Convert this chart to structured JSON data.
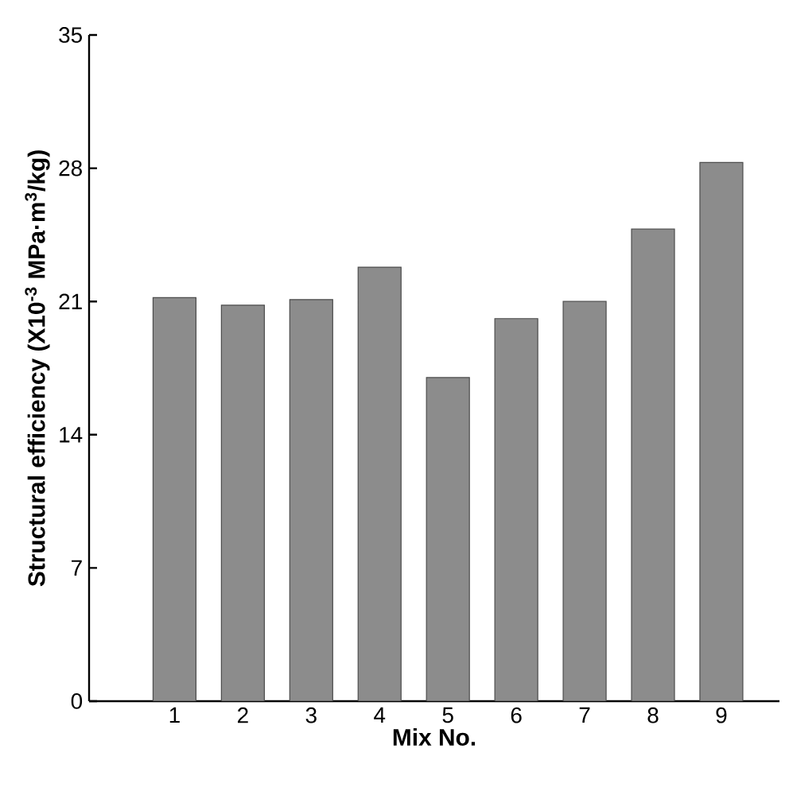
{
  "chart_data": {
    "type": "bar",
    "xlabel": "Mix No.",
    "ylabel": "Structural efficiency (X10$^{-3}$ MPa·m$^{3}$/kg)",
    "categories": [
      "1",
      "2",
      "3",
      "4",
      "5",
      "6",
      "7",
      "8",
      "9"
    ],
    "values": [
      21.2,
      20.8,
      21.1,
      22.8,
      17.0,
      20.1,
      21.0,
      24.8,
      28.3
    ],
    "color": "#8c8c8c",
    "ylim": [
      0,
      35
    ],
    "yticks": [
      0,
      7,
      14,
      21,
      28,
      35
    ]
  }
}
